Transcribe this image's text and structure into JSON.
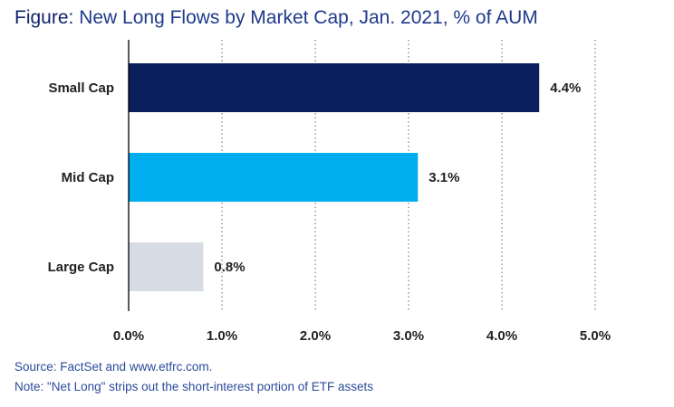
{
  "title": {
    "lead": "Figure:",
    "text": "New Long Flows by Market Cap, Jan. 2021, % of AUM"
  },
  "footnotes": {
    "source": "Source: FactSet and www.etfrc.com.",
    "note": "Note: \"Net Long\" strips out the short-interest portion of ETF assets"
  },
  "colors": {
    "title": "#1f3a8a",
    "small_cap": "#0b1f5e",
    "mid_cap": "#00adef",
    "large_cap": "#d6dbe4",
    "gridline": "#7f7f7f",
    "axis": "#000000"
  },
  "chart_data": {
    "type": "bar",
    "orientation": "horizontal",
    "title": "New Long Flows by Market Cap, Jan. 2021, % of AUM",
    "categories": [
      "Small Cap",
      "Mid Cap",
      "Large Cap"
    ],
    "values": [
      4.4,
      3.1,
      0.8
    ],
    "value_labels": [
      "4.4%",
      "3.1%",
      "0.8%"
    ],
    "xlim": [
      0,
      5
    ],
    "xticks": [
      0,
      1,
      2,
      3,
      4,
      5
    ],
    "xtick_labels": [
      "0.0%",
      "1.0%",
      "2.0%",
      "3.0%",
      "4.0%",
      "5.0%"
    ],
    "xlabel": "",
    "ylabel": "",
    "grid": "vertical dotted",
    "legend": "none"
  }
}
